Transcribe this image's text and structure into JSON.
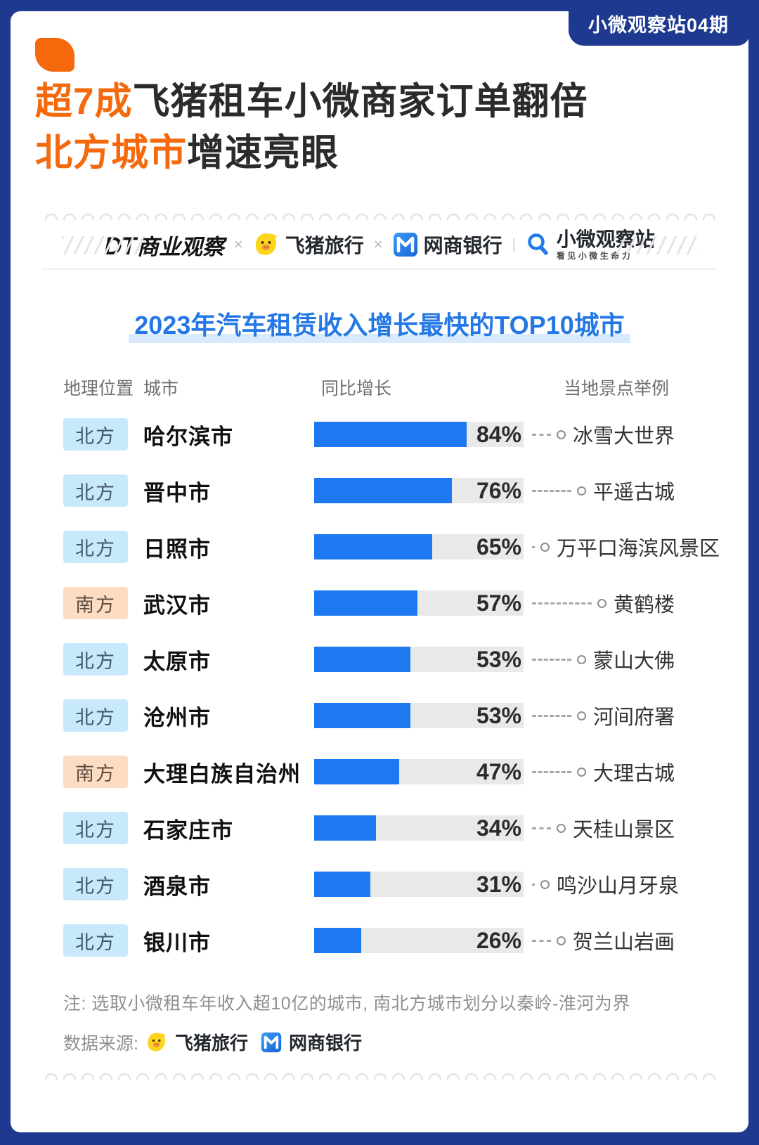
{
  "frame": {
    "edition_badge": "小微观察站04期"
  },
  "header": {
    "title_line1_highlight": "超7成",
    "title_line1_rest": "飞猪租车小微商家订单翻倍",
    "title_line2_highlight": "北方城市",
    "title_line2_rest": "增速亮眼"
  },
  "logos": {
    "dt_prefix": "DT",
    "dt_name": "商业观察",
    "sep1": "×",
    "feizhu": "飞猪旅行",
    "sep2": "×",
    "wangshang": "网商银行",
    "sep3": "|",
    "xiaowei": "小微观察站",
    "xiaowei_tagline": "看见小微生命力"
  },
  "chart_data": {
    "type": "bar",
    "orientation": "horizontal",
    "title": "2023年汽车租赁收入增长最快的TOP10城市",
    "value_suffix": "%",
    "xlim": [
      0,
      100
    ],
    "grid": false,
    "columns": {
      "location": "地理位置",
      "city": "城市",
      "growth": "同比增长",
      "landmark": "当地景点举例"
    },
    "categories": [
      "哈尔滨市",
      "晋中市",
      "日照市",
      "武汉市",
      "太原市",
      "沧州市",
      "大理白族自治州",
      "石家庄市",
      "酒泉市",
      "银川市"
    ],
    "values": [
      84,
      76,
      65,
      57,
      53,
      53,
      47,
      34,
      31,
      26
    ],
    "rows": [
      {
        "region": "北方",
        "region_type": "north",
        "city": "哈尔滨市",
        "growth": 84,
        "landmark": "冰雪大世界"
      },
      {
        "region": "北方",
        "region_type": "north",
        "city": "晋中市",
        "growth": 76,
        "landmark": "平遥古城"
      },
      {
        "region": "北方",
        "region_type": "north",
        "city": "日照市",
        "growth": 65,
        "landmark": "万平口海滨风景区"
      },
      {
        "region": "南方",
        "region_type": "south",
        "city": "武汉市",
        "growth": 57,
        "landmark": "黄鹤楼"
      },
      {
        "region": "北方",
        "region_type": "north",
        "city": "太原市",
        "growth": 53,
        "landmark": "蒙山大佛"
      },
      {
        "region": "北方",
        "region_type": "north",
        "city": "沧州市",
        "growth": 53,
        "landmark": "河间府署"
      },
      {
        "region": "南方",
        "region_type": "south",
        "city": "大理白族自治州",
        "growth": 47,
        "landmark": "大理古城"
      },
      {
        "region": "北方",
        "region_type": "north",
        "city": "石家庄市",
        "growth": 34,
        "landmark": "天桂山景区"
      },
      {
        "region": "北方",
        "region_type": "north",
        "city": "酒泉市",
        "growth": 31,
        "landmark": "鸣沙山月牙泉"
      },
      {
        "region": "北方",
        "region_type": "north",
        "city": "银川市",
        "growth": 26,
        "landmark": "贺兰山岩画"
      }
    ]
  },
  "footer": {
    "note": "注: 选取小微租车年收入超10亿的城市, 南北方城市划分以秦岭-淮河为界",
    "source_label": "数据来源:",
    "source_names": [
      "飞猪旅行",
      "网商银行"
    ]
  },
  "colors": {
    "frame_blue": "#1d3a90",
    "accent_orange": "#f5690c",
    "bar_blue": "#1e78f0",
    "track_gray": "#e9e9e9",
    "north_badge_bg": "#c8e9fb",
    "south_badge_bg": "#fcdcc2",
    "chart_title_blue": "#2478e5",
    "title_highlight_bg": "#d9eafc"
  }
}
